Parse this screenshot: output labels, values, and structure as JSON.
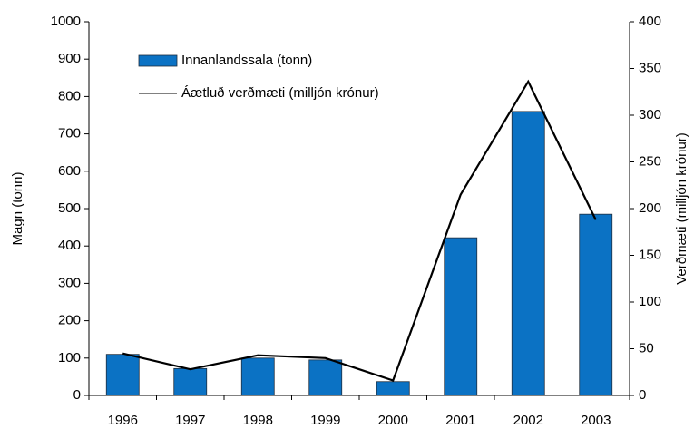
{
  "chart_data": {
    "type": "bar_line",
    "categories": [
      "1996",
      "1997",
      "1998",
      "1999",
      "2000",
      "2001",
      "2002",
      "2003"
    ],
    "series": [
      {
        "name": "Innanlandssala (tonn)",
        "type": "bar",
        "color": "#0b72c4",
        "values": [
          110,
          72,
          100,
          95,
          37,
          422,
          760,
          485
        ]
      },
      {
        "name": "Áætluð verðmæti (milljón krónur)",
        "type": "line",
        "axis": "y2",
        "color": "#000000",
        "values": [
          45,
          28,
          43,
          40,
          16,
          215,
          336,
          188
        ]
      }
    ],
    "ylabel": "Magn (tonn)",
    "y2label": "Verðmæti (milljón krónur)",
    "ylim": [
      0,
      1000
    ],
    "yticks": [
      0,
      100,
      200,
      300,
      400,
      500,
      600,
      700,
      800,
      900,
      1000
    ],
    "y2lim": [
      0,
      400
    ],
    "y2ticks": [
      0,
      50,
      100,
      150,
      200,
      250,
      300,
      350,
      400
    ],
    "grid": false,
    "legend": "upper left"
  }
}
